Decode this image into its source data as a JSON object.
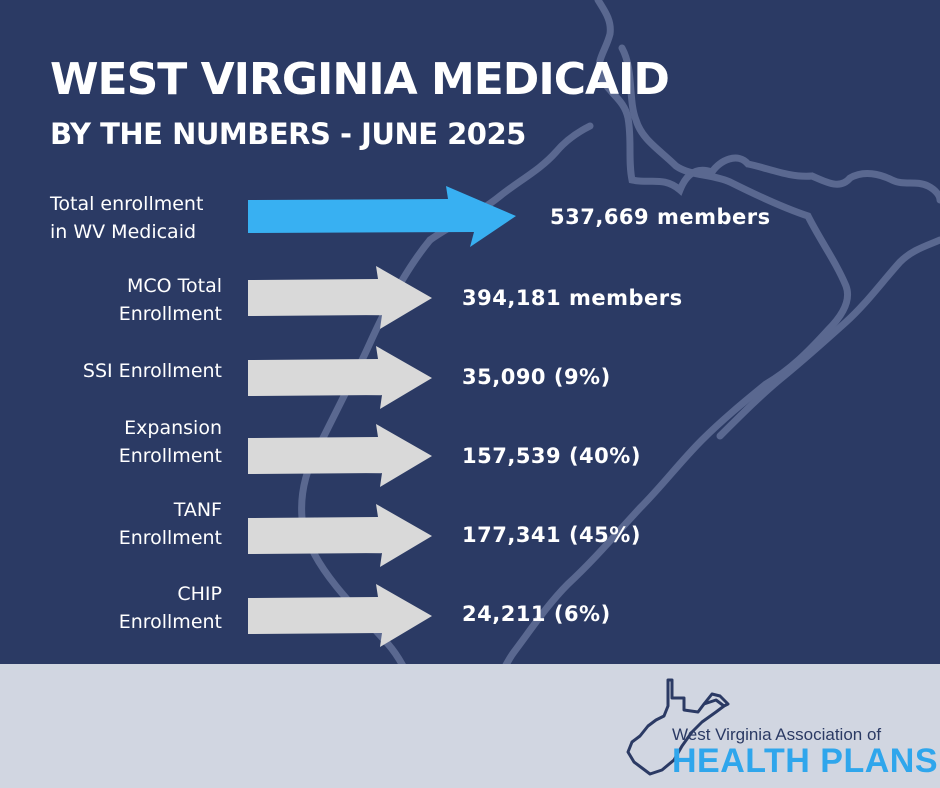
{
  "header": {
    "title": "WEST VIRGINIA MEDICAID",
    "subtitle": "BY THE NUMBERS - JUNE 2025"
  },
  "rows": [
    {
      "label_line1": "Total enrollment",
      "label_line2": "in WV Medicaid",
      "value": "537,669 members",
      "highlight": true
    },
    {
      "label_line1": "MCO Total",
      "label_line2": "Enrollment",
      "value": "394,181 members",
      "highlight": false
    },
    {
      "label_line1": "SSI Enrollment",
      "label_line2": "",
      "value": "35,090 (9%)",
      "highlight": false
    },
    {
      "label_line1": "Expansion",
      "label_line2": "Enrollment",
      "value": "157,539 (40%)",
      "highlight": false
    },
    {
      "label_line1": "TANF",
      "label_line2": "Enrollment",
      "value": "177,341 (45%)",
      "highlight": false
    },
    {
      "label_line1": "CHIP",
      "label_line2": "Enrollment",
      "value": "24,211 (6%)",
      "highlight": false
    }
  ],
  "logo": {
    "line1": "West Virginia Association of",
    "line2": "HEALTH PLANS",
    "icon": "west-virginia-state-outline-icon"
  },
  "colors": {
    "background": "#2b3a64",
    "highlight_arrow": "#38b0f2",
    "arrow": "#d9d9d9",
    "footer": "#d1d6e1",
    "logo_blue": "#2fa6ec"
  }
}
